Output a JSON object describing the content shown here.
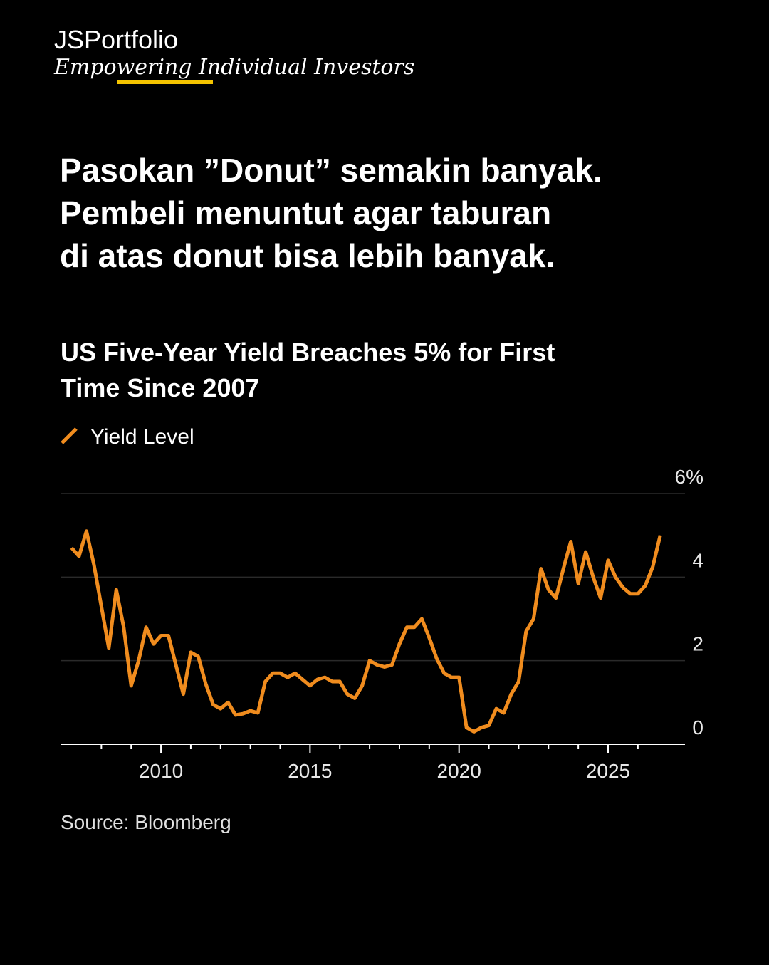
{
  "brand": {
    "name": "JSPortfolio",
    "tagline": "Empowering Individual Investors"
  },
  "headline": [
    "Pasokan ”Donut” semakin banyak.",
    "Pembeli menuntut agar taburan",
    "di atas donut bisa lebih banyak."
  ],
  "chart_data": {
    "type": "line",
    "title": [
      "US Five-Year Yield Breaches 5% for First",
      "Time Since 2007"
    ],
    "source": "Source: Bloomberg",
    "x": [
      2007,
      2007.25,
      2007.5,
      2007.75,
      2008,
      2008.25,
      2008.5,
      2008.75,
      2009,
      2009.25,
      2009.5,
      2009.75,
      2010,
      2010.25,
      2010.5,
      2010.75,
      2011,
      2011.25,
      2011.5,
      2011.75,
      2012,
      2012.25,
      2012.5,
      2012.75,
      2013,
      2013.25,
      2013.5,
      2013.75,
      2014,
      2014.25,
      2014.5,
      2014.75,
      2015,
      2015.25,
      2015.5,
      2015.75,
      2016,
      2016.25,
      2016.5,
      2016.75,
      2017,
      2017.25,
      2017.5,
      2017.75,
      2018,
      2018.25,
      2018.5,
      2018.75,
      2019,
      2019.25,
      2019.5,
      2019.75,
      2020,
      2020.25,
      2020.5,
      2020.75,
      2021,
      2021.25,
      2021.5,
      2021.75,
      2022,
      2022.25,
      2022.5,
      2022.75,
      2023,
      2023.25,
      2023.5,
      2023.75,
      2024,
      2024.25,
      2024.5,
      2024.75,
      2025,
      2025.25,
      2025.5,
      2025.75,
      2026,
      2026.25,
      2026.5,
      2026.75
    ],
    "series": [
      {
        "name": "Yield Level",
        "color": "#f08c1e",
        "values": [
          4.7,
          4.5,
          5.1,
          4.3,
          3.3,
          2.3,
          3.7,
          2.8,
          1.4,
          2.0,
          2.8,
          2.4,
          2.6,
          2.6,
          1.9,
          1.2,
          2.2,
          2.1,
          1.45,
          0.95,
          0.85,
          1.0,
          0.7,
          0.73,
          0.8,
          0.75,
          1.5,
          1.7,
          1.7,
          1.6,
          1.7,
          1.55,
          1.4,
          1.55,
          1.6,
          1.5,
          1.5,
          1.2,
          1.1,
          1.4,
          2.0,
          1.9,
          1.85,
          1.9,
          2.4,
          2.8,
          2.8,
          3.0,
          2.55,
          2.05,
          1.7,
          1.6,
          1.6,
          0.4,
          0.3,
          0.4,
          0.45,
          0.85,
          0.75,
          1.2,
          1.5,
          2.7,
          3.0,
          4.2,
          3.7,
          3.5,
          4.2,
          4.85,
          3.85,
          4.6,
          4.0,
          3.5,
          4.4,
          4.0,
          3.75,
          3.6,
          3.6,
          3.8,
          4.25,
          5.0
        ]
      }
    ],
    "xlim": [
      2006.63,
      2027.58
    ],
    "xticks": [
      2010,
      2015,
      2020,
      2025
    ],
    "xminorticks": [
      2008,
      2009,
      2011,
      2012,
      2013,
      2014,
      2016,
      2017,
      2018,
      2019,
      2021,
      2022,
      2023,
      2024,
      2026
    ],
    "ylim": [
      0,
      6
    ],
    "yticks": [
      0,
      2,
      4,
      {
        "value": 6,
        "label": "6%"
      }
    ],
    "grid": true
  }
}
